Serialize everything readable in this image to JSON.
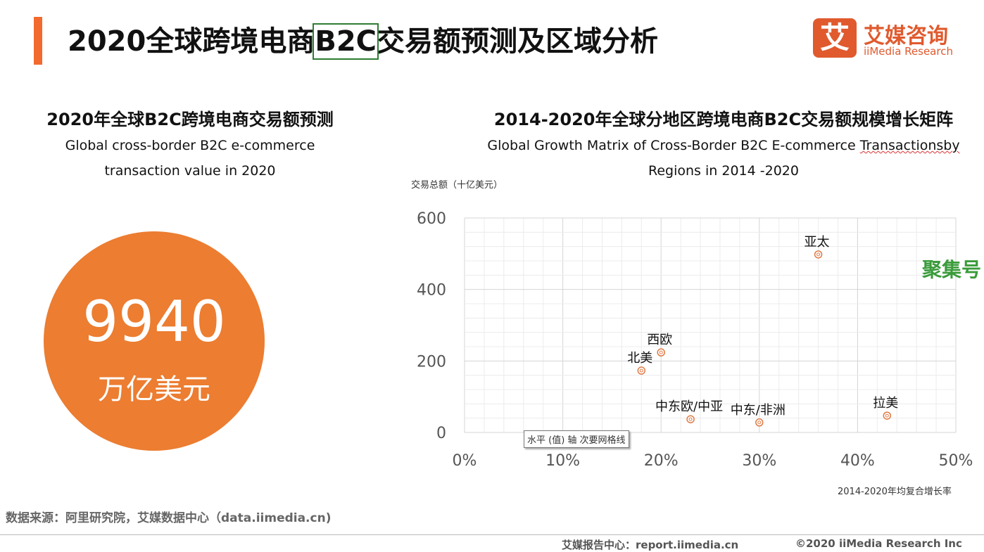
{
  "header": {
    "title_pre": "2020全球跨境电商",
    "title_hl": "B2C",
    "title_post": "交易额预测及区域分析"
  },
  "logo": {
    "mark": "艾",
    "cn": "艾媒咨询",
    "en": "iiMedia Research"
  },
  "left": {
    "title": "2020年全球B2C跨境电商交易额预测",
    "subtitle1": "Global cross-border B2C e-commerce",
    "subtitle2": "transaction value in 2020",
    "value": "9940",
    "unit": "万亿美元",
    "circle_color": "#ec7d31"
  },
  "right": {
    "title": "2014-2020年全球分地区跨境电商B2C交易额规模增长矩阵",
    "subtitle1a": "Global Growth Matrix of Cross-Border B2C E-commerce ",
    "subtitle1b": "Transactionsby",
    "subtitle2": "Regions  in 2014 -2020"
  },
  "chart_data": {
    "type": "scatter",
    "title": "2014-2020年全球分地区跨境电商B2C交易额规模增长矩阵",
    "xlabel": "2014-2020年均复合增长率",
    "ylabel": "交易总额（十亿美元）",
    "xlim": [
      0,
      50
    ],
    "ylim": [
      0,
      600
    ],
    "xticks": [
      "0%",
      "10%",
      "20%",
      "30%",
      "40%",
      "50%"
    ],
    "yticks": [
      "0",
      "200",
      "400",
      "600"
    ],
    "grid": true,
    "marker_color": "#e07a45",
    "points": [
      {
        "label": "亚太",
        "x": 36,
        "y": 498
      },
      {
        "label": "西欧",
        "x": 20,
        "y": 224
      },
      {
        "label": "北美",
        "x": 18,
        "y": 173
      },
      {
        "label": "中东欧/中亚",
        "x": 23,
        "y": 37
      },
      {
        "label": "中东/非洲",
        "x": 30,
        "y": 28
      },
      {
        "label": "拉美",
        "x": 43,
        "y": 47
      }
    ]
  },
  "watermark": "聚集号",
  "tooltip": "水平 (值) 轴 次要网格线",
  "source": "数据来源：阿里研究院，艾媒数据中心（data.iimedia.cn)",
  "footer": {
    "report": "艾媒报告中心：report.iimedia.cn",
    "copyright": "©2020  iiMedia Research  Inc"
  }
}
